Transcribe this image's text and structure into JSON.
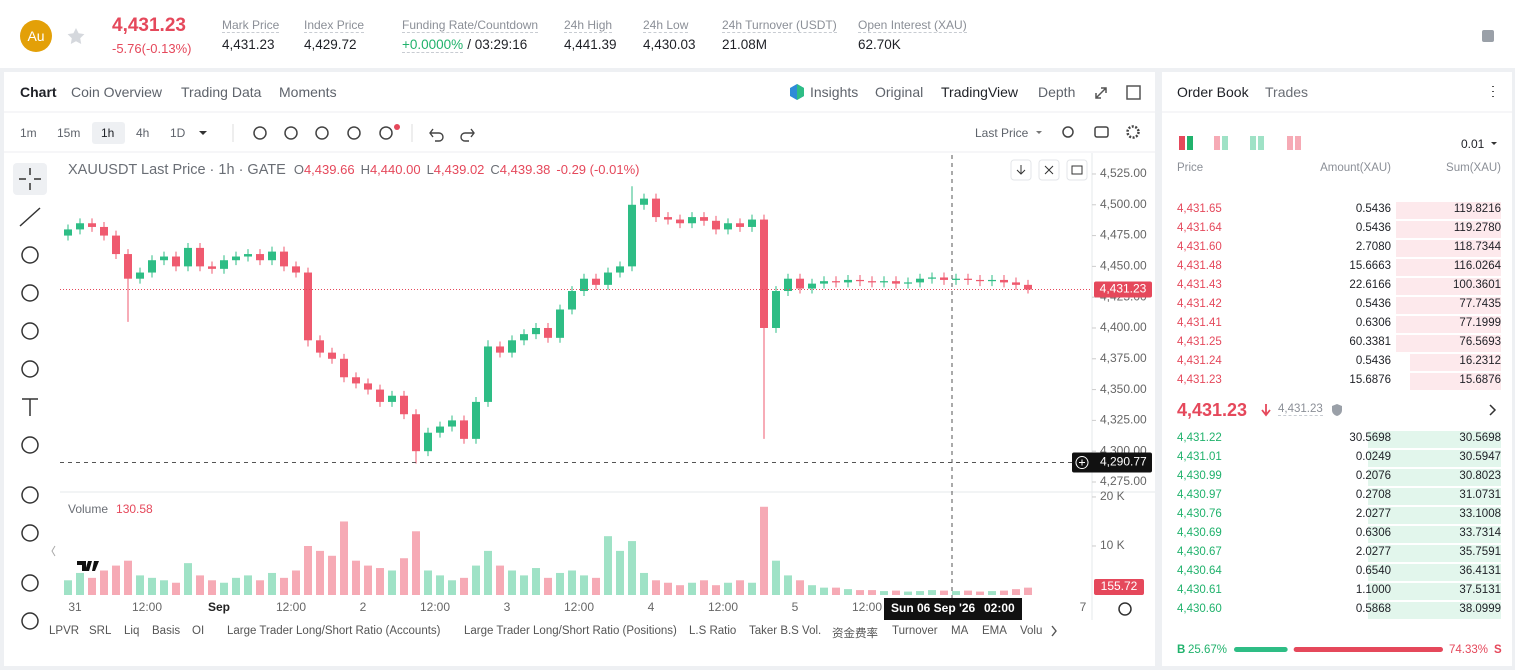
{
  "header": {
    "symbol_icon": "Au",
    "price": "4,431.23",
    "change": "-5.76(-0.13%)",
    "stats": [
      {
        "label": "Mark Price",
        "value": "4,431.23"
      },
      {
        "label": "Index Price",
        "value": "4,429.72"
      },
      {
        "label": "Funding Rate/Countdown",
        "value": "+0.0000%",
        "extra": "/ 03:29:16"
      },
      {
        "label": "24h High",
        "value": "4,441.39"
      },
      {
        "label": "24h Low",
        "value": "4,430.03"
      },
      {
        "label": "24h Turnover (USDT)",
        "value": "21.08M"
      },
      {
        "label": "Open Interest (XAU)",
        "value": "62.70K"
      }
    ]
  },
  "chart_tabs": [
    "Chart",
    "Coin Overview",
    "Trading Data",
    "Moments"
  ],
  "view_tabs": [
    "Insights",
    "Original",
    "TradingView",
    "Depth"
  ],
  "intervals": [
    "1m",
    "15m",
    "1h",
    "4h",
    "1D"
  ],
  "price_type": "Last Price",
  "chart_data": [
    {
      "type": "candlestick",
      "legend": {
        "title": "XAUUSDT Last Price · 1h · GATE",
        "ohlc": [
          {
            "key": "O",
            "value": "4,439.66"
          },
          {
            "key": "H",
            "value": "4,440.00"
          },
          {
            "key": "L",
            "value": "4,439.02"
          },
          {
            "key": "C",
            "value": "4,439.38"
          }
        ],
        "change": "-0.29 (-0.01%)"
      },
      "categories": [
        "31",
        "12:00",
        "Sep",
        "12:00",
        "2",
        "12:00",
        "3",
        "12:00",
        "4",
        "12:00",
        "5",
        "12:00",
        null,
        null,
        "7"
      ],
      "open": [
        4475,
        4480,
        4485,
        4482,
        4475,
        4460,
        4440,
        4445,
        4455,
        4458,
        4450,
        4465,
        4450,
        4448,
        4455,
        4458,
        4460,
        4455,
        4462,
        4450,
        4445,
        4390,
        4380,
        4375,
        4360,
        4355,
        4350,
        4340,
        4345,
        4330,
        4300,
        4315,
        4320,
        4325,
        4310,
        4340,
        4385,
        4380,
        4390,
        4395,
        4400,
        4392,
        4415,
        4430,
        4440,
        4435,
        4445,
        4450,
        4500,
        4505,
        4490,
        4488,
        4485,
        4490,
        4487,
        4480,
        4485,
        4482,
        4488,
        4400,
        4430,
        4440,
        4432,
        4436,
        4438,
        4437,
        4439,
        4438,
        4437,
        4438,
        4436,
        4437,
        4440,
        4441,
        4439,
        4440,
        4439,
        4438,
        4439,
        4437,
        4435
      ],
      "high": [
        4484,
        4489,
        4489,
        4486,
        4479,
        4464,
        4449,
        4459,
        4462,
        4462,
        4469,
        4469,
        4454,
        4459,
        4462,
        4464,
        4464,
        4466,
        4466,
        4454,
        4449,
        4394,
        4384,
        4379,
        4364,
        4359,
        4354,
        4349,
        4349,
        4334,
        4319,
        4324,
        4329,
        4329,
        4344,
        4390,
        4389,
        4394,
        4399,
        4404,
        4404,
        4419,
        4434,
        4444,
        4444,
        4449,
        4454,
        4515,
        4509,
        4509,
        4494,
        4492,
        4494,
        4494,
        4491,
        4489,
        4489,
        4492,
        4492,
        4434,
        4444,
        4444,
        4440,
        4442,
        4442,
        4443,
        4443,
        4442,
        4442,
        4442,
        4441,
        4444,
        4445,
        4445,
        4444,
        4444,
        4443,
        4443,
        4443,
        4441,
        4439
      ],
      "low": [
        4471,
        4476,
        4478,
        4471,
        4456,
        4405,
        4436,
        4441,
        4451,
        4446,
        4446,
        4446,
        4444,
        4444,
        4451,
        4454,
        4451,
        4451,
        4446,
        4441,
        4385,
        4376,
        4371,
        4356,
        4351,
        4346,
        4336,
        4336,
        4326,
        4290,
        4296,
        4311,
        4316,
        4306,
        4306,
        4336,
        4376,
        4376,
        4386,
        4391,
        4388,
        4388,
        4411,
        4426,
        4431,
        4431,
        4441,
        4446,
        4496,
        4486,
        4484,
        4481,
        4481,
        4483,
        4476,
        4476,
        4478,
        4478,
        4310,
        4396,
        4426,
        4428,
        4428,
        4432,
        4433,
        4433,
        4434,
        4433,
        4433,
        4432,
        4432,
        4433,
        4436,
        4435,
        4435,
        4435,
        4434,
        4434,
        4433,
        4431,
        4428
      ],
      "close": [
        4480,
        4485,
        4482,
        4475,
        4460,
        4440,
        4445,
        4455,
        4458,
        4450,
        4465,
        4450,
        4448,
        4455,
        4458,
        4460,
        4455,
        4462,
        4450,
        4445,
        4390,
        4380,
        4375,
        4360,
        4355,
        4350,
        4340,
        4345,
        4330,
        4300,
        4315,
        4320,
        4325,
        4310,
        4340,
        4385,
        4380,
        4390,
        4395,
        4400,
        4392,
        4415,
        4430,
        4440,
        4435,
        4445,
        4450,
        4500,
        4505,
        4490,
        4488,
        4485,
        4490,
        4487,
        4480,
        4485,
        4482,
        4488,
        4400,
        4430,
        4440,
        4432,
        4436,
        4438,
        4437,
        4439,
        4438,
        4437,
        4438,
        4436,
        4437,
        4440,
        4441,
        4439,
        4440,
        4439,
        4438,
        4439,
        4437,
        4435,
        4431.23
      ],
      "up_color": "#2ebd85",
      "down_color": "#ef5a6f",
      "ylim": [
        4268.5,
        4540.4
      ],
      "yticks": [
        {
          "value": 4275,
          "label": "4,275.00"
        },
        {
          "value": 4300,
          "label": "4,300.00"
        },
        {
          "value": 4325,
          "label": "4,325.00"
        },
        {
          "value": 4350,
          "label": "4,350.00"
        },
        {
          "value": 4375,
          "label": "4,375.00"
        },
        {
          "value": 4400,
          "label": "4,400.00"
        },
        {
          "value": 4425,
          "label": "4,425.00"
        },
        {
          "value": 4450,
          "label": "4,450.00"
        },
        {
          "value": 4475,
          "label": "4,475.00"
        },
        {
          "value": 4500,
          "label": "4,500.00"
        },
        {
          "value": 4525,
          "label": "4,525.00"
        }
      ],
      "last_price": {
        "value": 4431.23,
        "label": "4,431.23"
      },
      "crosshair": {
        "value": 4290.77,
        "label": "4,290.77",
        "date": "Sun 06 Sep '26",
        "time": "02:00"
      }
    },
    {
      "type": "bar",
      "title": "Volume",
      "current": "130.58",
      "values": [
        3000,
        4500,
        3500,
        5000,
        6000,
        7000,
        4000,
        3500,
        3000,
        2500,
        6500,
        4000,
        3000,
        2500,
        3500,
        4000,
        3000,
        4500,
        3500,
        5000,
        10000,
        9000,
        8000,
        15000,
        7000,
        6000,
        5500,
        5000,
        7500,
        13000,
        5000,
        4000,
        3000,
        3500,
        6000,
        9000,
        6000,
        5000,
        4000,
        5500,
        3500,
        4500,
        5000,
        4000,
        3500,
        12000,
        9000,
        11000,
        4500,
        3000,
        2500,
        2000,
        2500,
        3000,
        2000,
        2500,
        3000,
        2500,
        18000,
        7000,
        4000,
        3000,
        2000,
        1500,
        1500,
        1200,
        1000,
        1000,
        800,
        900,
        700,
        800,
        1000,
        900,
        800,
        900,
        700,
        800,
        900,
        1200,
        1500
      ],
      "up_color": "#9fe2c6",
      "down_color": "#f6aab5",
      "ylim": [
        0,
        20400
      ],
      "yticks": [
        {
          "value": 10000,
          "label": "10 K"
        },
        {
          "value": 20000,
          "label": "20 K"
        }
      ],
      "last": {
        "value": 155.72,
        "label": "155.72"
      }
    }
  ],
  "indicators": [
    "LPVR",
    "SRL",
    "Liq",
    "Basis",
    "OI",
    "Large Trader Long/Short Ratio (Accounts)",
    "Large Trader Long/Short Ratio (Positions)",
    "L.S Ratio",
    "Taker B.S Vol.",
    "资金费率",
    "Turnover",
    "MA",
    "EMA",
    "Volu"
  ],
  "order_book": {
    "tabs": [
      "Order Book",
      "Trades"
    ],
    "precision": "0.01",
    "columns": [
      "Price",
      "Amount(XAU)",
      "Sum(XAU)"
    ],
    "asks": [
      [
        "4,431.65",
        "0.5436",
        "119.8216"
      ],
      [
        "4,431.64",
        "0.5436",
        "119.2780"
      ],
      [
        "4,431.60",
        "2.7080",
        "118.7344"
      ],
      [
        "4,431.48",
        "15.6663",
        "116.0264"
      ],
      [
        "4,431.43",
        "22.6166",
        "100.3601"
      ],
      [
        "4,431.42",
        "0.5436",
        "77.7435"
      ],
      [
        "4,431.41",
        "0.6306",
        "77.1999"
      ],
      [
        "4,431.25",
        "60.3381",
        "76.5693"
      ],
      [
        "4,431.24",
        "0.5436",
        "16.2312"
      ],
      [
        "4,431.23",
        "15.6876",
        "15.6876"
      ]
    ],
    "last_price": "4,431.23",
    "mark_price": "4,431.23",
    "bids": [
      [
        "4,431.22",
        "30.5698",
        "30.5698"
      ],
      [
        "4,431.01",
        "0.0249",
        "30.5947"
      ],
      [
        "4,430.99",
        "0.2076",
        "30.8023"
      ],
      [
        "4,430.97",
        "0.2708",
        "31.0731"
      ],
      [
        "4,430.76",
        "2.0277",
        "33.1008"
      ],
      [
        "4,430.69",
        "0.6306",
        "33.7314"
      ],
      [
        "4,430.67",
        "2.0277",
        "35.7591"
      ],
      [
        "4,430.64",
        "0.6540",
        "36.4131"
      ],
      [
        "4,430.61",
        "1.1000",
        "37.5131"
      ],
      [
        "4,430.60",
        "0.5868",
        "38.0999"
      ]
    ],
    "buy_ratio": {
      "key": "B",
      "value": 25.67,
      "label": "25.67%"
    },
    "sell_ratio": {
      "key": "S",
      "value": 74.33,
      "label": "74.33%"
    }
  }
}
